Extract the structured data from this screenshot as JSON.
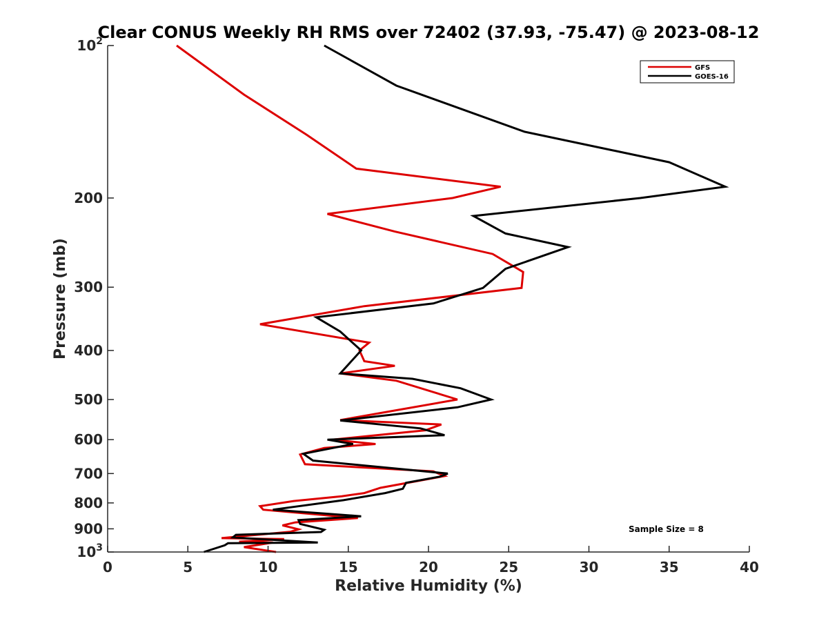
{
  "chart_data": {
    "type": "line",
    "title": "Clear CONUS Weekly RH RMS over 72402 (37.93, -75.47) @ 2023-08-12",
    "xlabel": "Relative Humidity (%)",
    "ylabel": "Pressure (mb)",
    "xlim": [
      0,
      40
    ],
    "ylim": [
      100,
      1000
    ],
    "yscale": "log",
    "y_reversed": true,
    "grid": false,
    "legend_position": "top-right",
    "x_ticks": [
      0,
      5,
      10,
      15,
      20,
      25,
      30,
      35,
      40
    ],
    "x_tick_labels": [
      "0",
      "5",
      "10",
      "15",
      "20",
      "25",
      "30",
      "35",
      "40"
    ],
    "y_ticks": [
      100,
      200,
      300,
      400,
      500,
      600,
      700,
      800,
      900,
      1000
    ],
    "y_tick_labels": [
      {
        "base": "10",
        "exp": "2"
      },
      {
        "base": "200",
        "exp": ""
      },
      {
        "base": "300",
        "exp": ""
      },
      {
        "base": "400",
        "exp": ""
      },
      {
        "base": "500",
        "exp": ""
      },
      {
        "base": "600",
        "exp": ""
      },
      {
        "base": "700",
        "exp": ""
      },
      {
        "base": "800",
        "exp": ""
      },
      {
        "base": "900",
        "exp": ""
      },
      {
        "base": "10",
        "exp": "3"
      }
    ],
    "annotation": "Sample Size = 8",
    "series": [
      {
        "name": "GFS",
        "color": "#dd0000",
        "points": [
          [
            4.3,
            100
          ],
          [
            8.5,
            125
          ],
          [
            12.4,
            150
          ],
          [
            15.5,
            175
          ],
          [
            24.5,
            190
          ],
          [
            21.5,
            200
          ],
          [
            13.7,
            215
          ],
          [
            17.9,
            233
          ],
          [
            24.0,
            258
          ],
          [
            25.9,
            280
          ],
          [
            25.8,
            301
          ],
          [
            16.0,
            327
          ],
          [
            9.5,
            355
          ],
          [
            16.3,
            386
          ],
          [
            15.7,
            400
          ],
          [
            16.0,
            420
          ],
          [
            17.9,
            429
          ],
          [
            14.5,
            444
          ],
          [
            18.0,
            459
          ],
          [
            21.8,
            500
          ],
          [
            14.5,
            549
          ],
          [
            20.8,
            560
          ],
          [
            19.8,
            575
          ],
          [
            14.0,
            600
          ],
          [
            16.7,
            612
          ],
          [
            13.5,
            623
          ],
          [
            12.0,
            642
          ],
          [
            12.3,
            671
          ],
          [
            20.3,
            693
          ],
          [
            21.0,
            708
          ],
          [
            17.0,
            747
          ],
          [
            16.0,
            765
          ],
          [
            14.6,
            776
          ],
          [
            11.6,
            793
          ],
          [
            9.5,
            812
          ],
          [
            9.7,
            825
          ],
          [
            15.6,
            857
          ],
          [
            11.7,
            874
          ],
          [
            10.9,
            886
          ],
          [
            11.9,
            902
          ],
          [
            11.4,
            912
          ],
          [
            7.1,
            939
          ],
          [
            11.0,
            943
          ],
          [
            8.2,
            954
          ],
          [
            10.3,
            958
          ],
          [
            8.5,
            978
          ],
          [
            10.5,
            1000
          ]
        ]
      },
      {
        "name": "GOES-16",
        "color": "#000000",
        "points": [
          [
            13.5,
            100
          ],
          [
            18.0,
            120
          ],
          [
            26.0,
            148
          ],
          [
            35.0,
            170
          ],
          [
            38.5,
            190
          ],
          [
            33.2,
            200
          ],
          [
            22.8,
            217
          ],
          [
            24.8,
            235
          ],
          [
            28.7,
            250
          ],
          [
            24.8,
            276
          ],
          [
            23.4,
            301
          ],
          [
            20.3,
            323
          ],
          [
            13.0,
            344
          ],
          [
            14.5,
            367
          ],
          [
            15.8,
            400
          ],
          [
            14.5,
            444
          ],
          [
            19.0,
            455
          ],
          [
            22.0,
            475
          ],
          [
            23.9,
            500
          ],
          [
            21.8,
            518
          ],
          [
            14.5,
            550
          ],
          [
            19.5,
            570
          ],
          [
            21.0,
            588
          ],
          [
            13.7,
            600
          ],
          [
            15.3,
            612
          ],
          [
            12.2,
            640
          ],
          [
            12.8,
            660
          ],
          [
            21.2,
            700
          ],
          [
            20.7,
            710
          ],
          [
            18.6,
            730
          ],
          [
            18.4,
            750
          ],
          [
            17.3,
            765
          ],
          [
            14.7,
            790
          ],
          [
            10.3,
            825
          ],
          [
            15.8,
            850
          ],
          [
            11.9,
            865
          ],
          [
            12.0,
            880
          ],
          [
            13.5,
            904
          ],
          [
            13.3,
            913
          ],
          [
            8.0,
            925
          ],
          [
            7.8,
            936
          ],
          [
            13.1,
            958
          ],
          [
            7.5,
            961
          ],
          [
            7.3,
            970
          ],
          [
            6.0,
            1000
          ]
        ]
      }
    ]
  }
}
